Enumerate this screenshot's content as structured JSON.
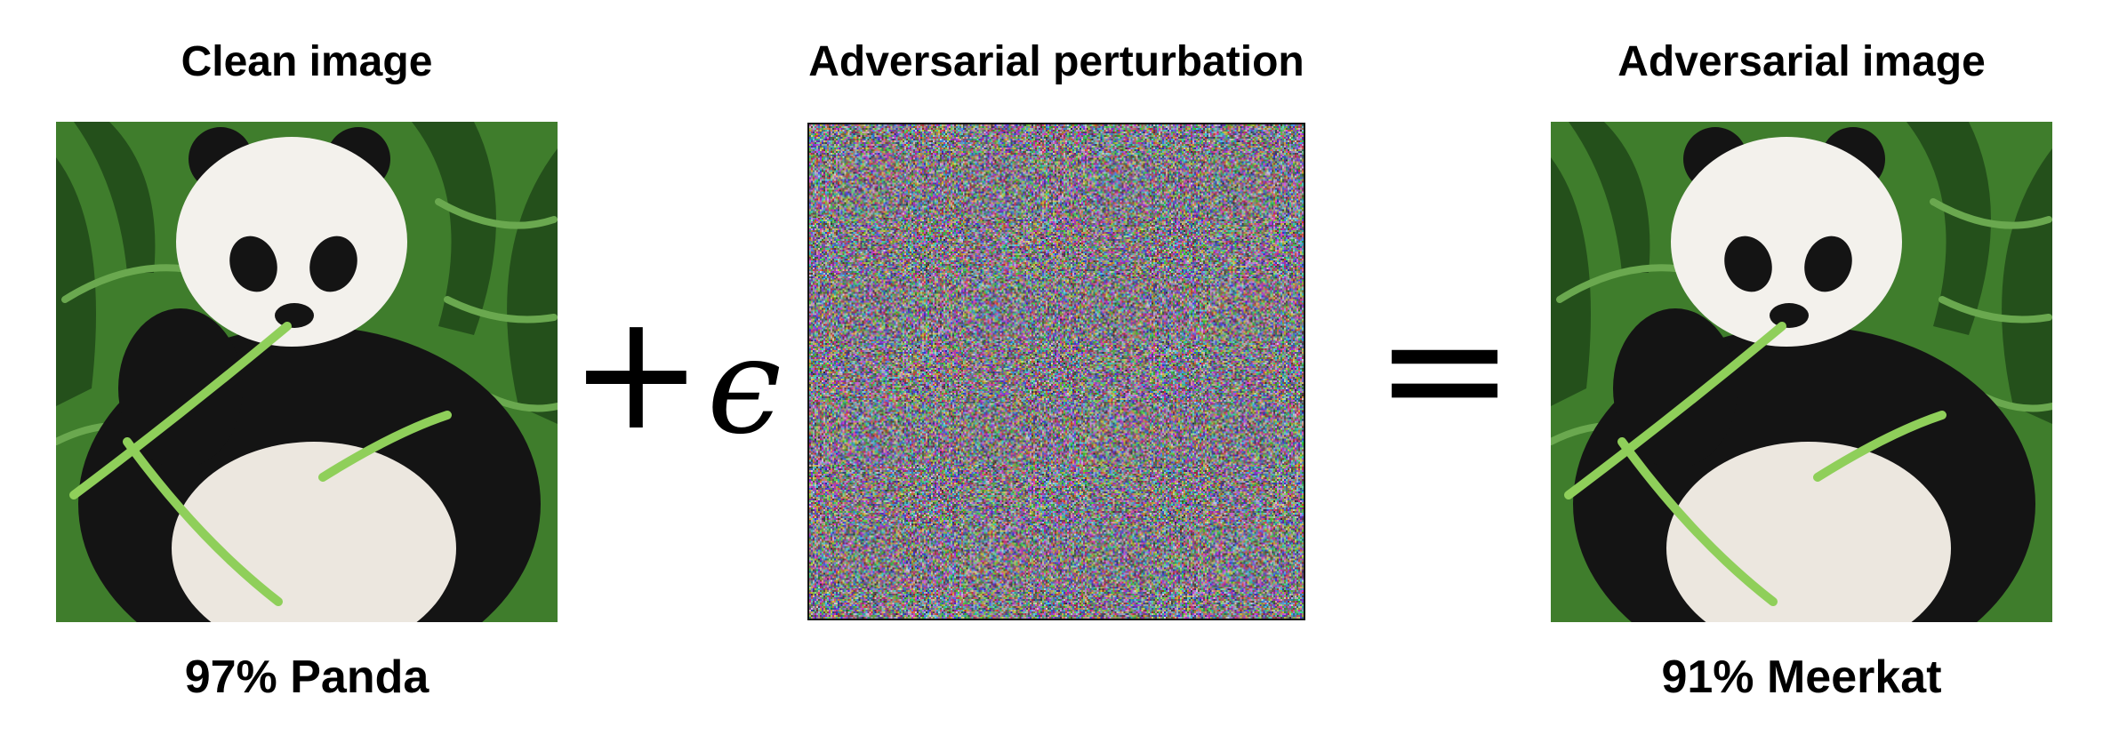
{
  "panels": {
    "clean": {
      "title": "Clean image",
      "caption": "97% Panda"
    },
    "perturbation": {
      "title": "Adversarial perturbation"
    },
    "adversarial": {
      "title": "Adversarial image",
      "caption": "91% Meerkat"
    }
  },
  "operators": {
    "plus": "+",
    "epsilon": "ϵ",
    "equals": "="
  },
  "colors": {
    "foliage": "#3f7d2c",
    "foliage_dark": "#24501b",
    "fur_white": "#f3f1ec",
    "fur_black": "#141414",
    "noise_bg": "#5a4e5c"
  }
}
